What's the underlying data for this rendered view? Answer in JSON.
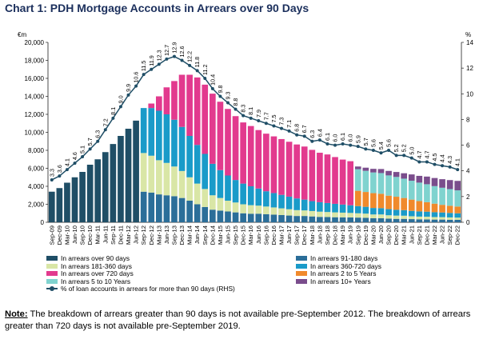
{
  "title": "Chart 1: PDH Mortgage Accounts in Arrears over 90 Days",
  "note": {
    "label": "Note:",
    "text": " The breakdown of arrears greater than 90 days is not available pre-September 2012. The breakdown of arrears greater than 720 days is not available pre-September 2019."
  },
  "colors": {
    "over90": "#1f4e66",
    "d91_180": "#2b6e99",
    "d181_360": "#d9e6a6",
    "d360_720": "#1a9bc9",
    "over720": "#e23a8e",
    "y2_5": "#f08a2c",
    "y5_10": "#7fd3cf",
    "y10plus": "#7a4d8c",
    "line": "#1f4e66"
  },
  "chart_data": {
    "type": "bar",
    "stacked": true,
    "title": "Chart 1: PDH Mortgage Accounts in Arrears over 90 Days",
    "left_axis_unit": "€m",
    "right_axis_unit": "%",
    "ylim": [
      0,
      20000
    ],
    "yticks": [
      "0",
      "2,000",
      "4,000",
      "6,000",
      "8,000",
      "10,000",
      "12,000",
      "14,000",
      "16,000",
      "18,000",
      "20,000"
    ],
    "y2lim": [
      0,
      14
    ],
    "y2ticks": [
      "0",
      "2",
      "4",
      "6",
      "8",
      "10",
      "12",
      "14"
    ],
    "x_labels": [
      "Sep-09",
      "Dec-09",
      "Mar-10",
      "Jun-10",
      "Sep-10",
      "Dec-10",
      "Mar-11",
      "Jun-11",
      "Sep-11",
      "Dec-11",
      "Mar-12",
      "Jun-12",
      "Sep-12",
      "Dec-12",
      "Mar-13",
      "Jun-13",
      "Sep-13",
      "Dec-13",
      "Mar-14",
      "Jun-14",
      "Sep-14",
      "Dec-14",
      "Mar-15",
      "Jun-15",
      "Sep-15",
      "Dec-15",
      "Mar-16",
      "Jun-16",
      "Sep-16",
      "Dec-16",
      "Mar-17",
      "Jun-17",
      "Sep-17",
      "Dec-17",
      "Mar-18",
      "Jun-18",
      "Sep-18",
      "Dec-18",
      "Mar-19",
      "Jun-19",
      "Sep-19",
      "Dec-19",
      "Mar-20",
      "Jun-20",
      "Sep-20",
      "Dec-20",
      "Mar-21",
      "Jun-21",
      "Sep-21",
      "Dec-21",
      "Mar-22",
      "Jun-22",
      "Sep-22",
      "Dec-22"
    ],
    "legend": [
      {
        "key": "over90",
        "label": "In arrears over 90 days"
      },
      {
        "key": "d91_180",
        "label": "In arrears 91-180 days"
      },
      {
        "key": "d181_360",
        "label": "In arrears 181-360 days"
      },
      {
        "key": "d360_720",
        "label": "In arrears 360-720 days"
      },
      {
        "key": "over720",
        "label": "In arrears over 720 days"
      },
      {
        "key": "y2_5",
        "label": "In arrears 2 to 5 Years"
      },
      {
        "key": "y5_10",
        "label": "In arrears 5 to 10 Years"
      },
      {
        "key": "y10plus",
        "label": "In arrears 10+ Years"
      },
      {
        "key": "line",
        "label": "% of loan accounts in arrears for more than 90 days (RHS)"
      }
    ],
    "series_order": [
      "over90",
      "d91_180",
      "d181_360",
      "d360_720",
      "over720",
      "y2_5",
      "y5_10",
      "y10plus"
    ],
    "series": {
      "over90": [
        3400,
        3800,
        4400,
        5000,
        5600,
        6400,
        7000,
        7800,
        8700,
        9600,
        10400,
        11300,
        0,
        0,
        0,
        0,
        0,
        0,
        0,
        0,
        0,
        0,
        0,
        0,
        0,
        0,
        0,
        0,
        0,
        0,
        0,
        0,
        0,
        0,
        0,
        0,
        0,
        0,
        0,
        0,
        0,
        0,
        0,
        0,
        0,
        0,
        0,
        0,
        0,
        0,
        0,
        0,
        0,
        0
      ],
      "d91_180": [
        0,
        0,
        0,
        0,
        0,
        0,
        0,
        0,
        0,
        0,
        0,
        0,
        3400,
        3300,
        3100,
        3000,
        2900,
        2700,
        2400,
        2000,
        1700,
        1400,
        1300,
        1200,
        1100,
        1000,
        950,
        950,
        900,
        850,
        800,
        750,
        700,
        700,
        650,
        600,
        580,
        560,
        550,
        540,
        520,
        500,
        450,
        450,
        400,
        380,
        380,
        350,
        330,
        320,
        300,
        300,
        280,
        270
      ],
      "d181_360": [
        0,
        0,
        0,
        0,
        0,
        0,
        0,
        0,
        0,
        0,
        0,
        0,
        4300,
        4100,
        3800,
        3600,
        3300,
        3000,
        2600,
        2300,
        2000,
        1600,
        1400,
        1200,
        1100,
        1000,
        950,
        900,
        850,
        800,
        750,
        700,
        650,
        620,
        600,
        580,
        560,
        540,
        520,
        500,
        480,
        460,
        420,
        420,
        380,
        360,
        350,
        320,
        300,
        300,
        280,
        270,
        260,
        250
      ],
      "d360_720": [
        0,
        0,
        0,
        0,
        0,
        0,
        0,
        0,
        0,
        0,
        0,
        0,
        5000,
        5300,
        5500,
        5400,
        5200,
        4900,
        4600,
        4300,
        3900,
        3500,
        3100,
        2800,
        2500,
        2300,
        2100,
        1900,
        1700,
        1600,
        1500,
        1400,
        1300,
        1200,
        1100,
        1050,
        1000,
        950,
        900,
        850,
        800,
        760,
        720,
        700,
        680,
        650,
        620,
        600,
        580,
        560,
        540,
        520,
        500,
        480
      ],
      "over720": [
        0,
        0,
        0,
        0,
        0,
        0,
        0,
        0,
        0,
        0,
        0,
        0,
        0,
        500,
        1600,
        3000,
        4300,
        5800,
        6800,
        7500,
        7700,
        7800,
        7600,
        7400,
        7100,
        6800,
        6700,
        6500,
        6400,
        6300,
        6200,
        6100,
        6000,
        5900,
        5700,
        5500,
        5400,
        5200,
        5000,
        4900,
        0,
        0,
        0,
        0,
        0,
        0,
        0,
        0,
        0,
        0,
        0,
        0,
        0,
        0
      ],
      "y2_5": [
        0,
        0,
        0,
        0,
        0,
        0,
        0,
        0,
        0,
        0,
        0,
        0,
        0,
        0,
        0,
        0,
        0,
        0,
        0,
        0,
        0,
        0,
        0,
        0,
        0,
        0,
        0,
        0,
        0,
        0,
        0,
        0,
        0,
        0,
        0,
        0,
        0,
        0,
        0,
        0,
        1700,
        1650,
        1650,
        1600,
        1500,
        1450,
        1350,
        1250,
        1150,
        1050,
        950,
        850,
        800,
        750
      ],
      "y5_10": [
        0,
        0,
        0,
        0,
        0,
        0,
        0,
        0,
        0,
        0,
        0,
        0,
        0,
        0,
        0,
        0,
        0,
        0,
        0,
        0,
        0,
        0,
        0,
        0,
        0,
        0,
        0,
        0,
        0,
        0,
        0,
        0,
        0,
        0,
        0,
        0,
        0,
        0,
        0,
        0,
        2400,
        2350,
        2300,
        2300,
        2250,
        2200,
        2150,
        2100,
        2050,
        2000,
        1950,
        1900,
        1850,
        1800
      ],
      "y10plus": [
        0,
        0,
        0,
        0,
        0,
        0,
        0,
        0,
        0,
        0,
        0,
        0,
        0,
        0,
        0,
        0,
        0,
        0,
        0,
        0,
        0,
        0,
        0,
        0,
        0,
        0,
        0,
        0,
        0,
        0,
        0,
        0,
        0,
        0,
        0,
        0,
        0,
        0,
        0,
        0,
        300,
        350,
        400,
        450,
        500,
        550,
        600,
        700,
        750,
        850,
        900,
        950,
        1000,
        1050
      ]
    },
    "pct_rhs": [
      3.3,
      3.6,
      4.1,
      4.6,
      5.1,
      5.7,
      6.3,
      7.2,
      8.1,
      9.0,
      9.9,
      10.6,
      11.5,
      11.9,
      12.3,
      12.7,
      12.9,
      12.6,
      12.2,
      11.8,
      11.2,
      10.4,
      9.8,
      9.3,
      8.8,
      8.3,
      8.1,
      7.9,
      7.7,
      7.5,
      7.3,
      7.1,
      6.8,
      6.7,
      6.3,
      6.4,
      6.1,
      6.0,
      6.1,
      6.0,
      5.9,
      5.7,
      5.6,
      5.4,
      5.6,
      5.2,
      5.2,
      5.0,
      4.7,
      4.7,
      4.5,
      4.4,
      4.3,
      4.1
    ],
    "pct_labels": [
      "3.3",
      "3.6",
      "4.1",
      "4.6",
      "5.1",
      "5.7",
      "6.3",
      "7.2",
      "8.1",
      "9.0",
      "9.9",
      "10.6",
      "11.5",
      "11.9",
      "12.3",
      "12.7",
      "12.9",
      "12.6",
      "12.2",
      "11.8",
      "11.2",
      "10.4",
      "9.8",
      "9.3",
      "8.8",
      "8.3",
      "8.1",
      "7.9",
      "7.7",
      "7.5",
      "7.3",
      "7.1",
      "6.8",
      "6.7",
      "6.3",
      "6.4",
      "6.1",
      "6.0",
      "6.1",
      "6.0",
      "5.9",
      "5.7",
      "5.6",
      "5.4",
      "5.6",
      "5.2",
      "5.2",
      "5.0",
      "4.7",
      "4.7",
      "4.5",
      "4.4",
      "4.3",
      "4.1"
    ],
    "grid": false,
    "legend_placement": "bottom"
  }
}
